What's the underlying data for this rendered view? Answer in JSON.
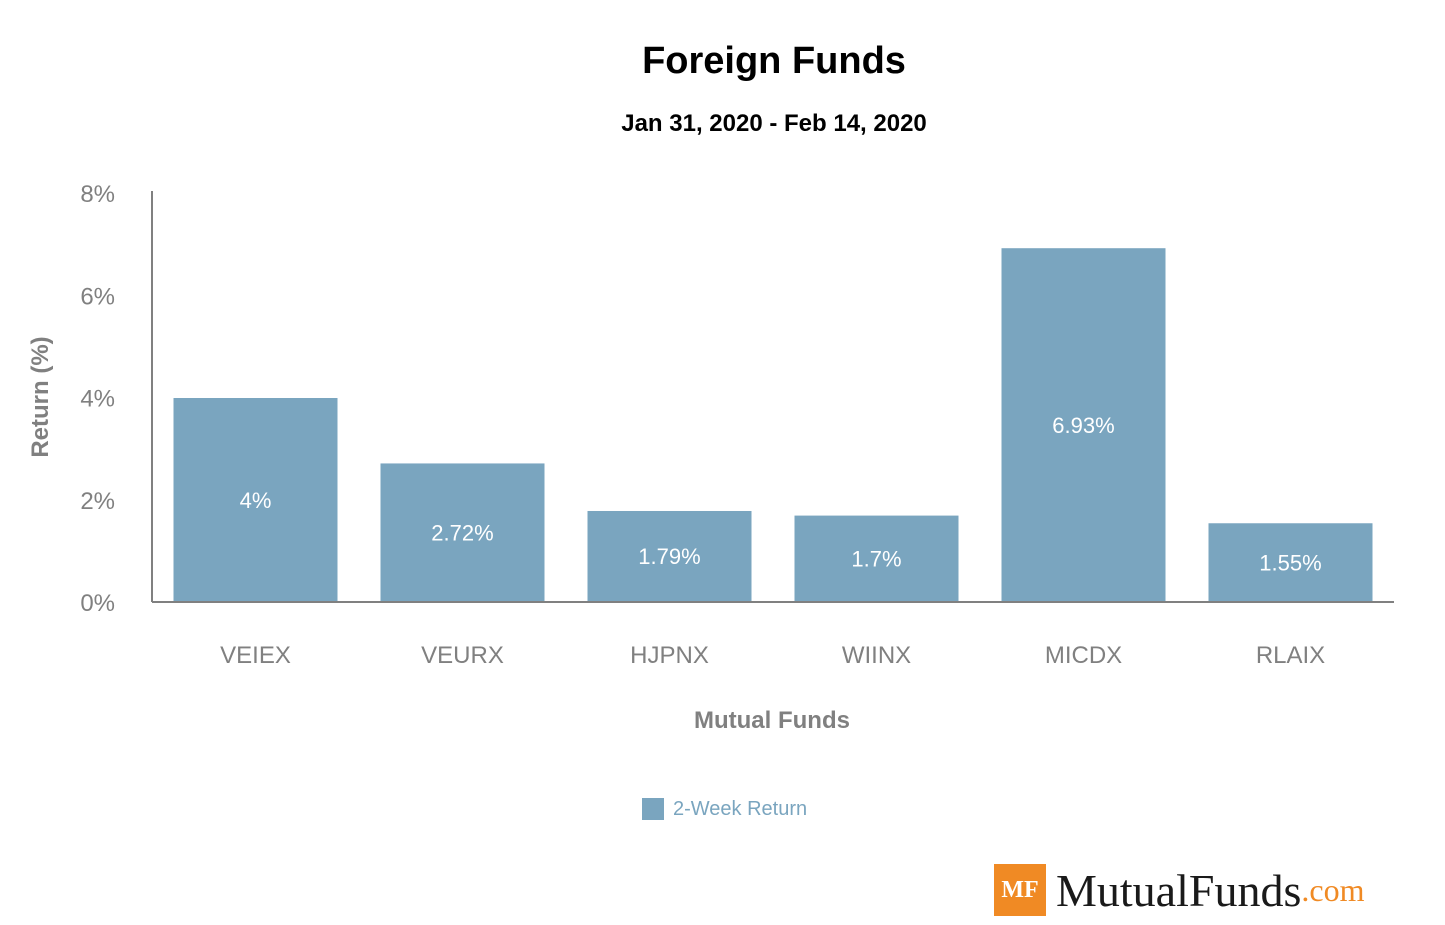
{
  "header": {
    "title": "Foreign Funds",
    "subtitle": "Jan 31, 2020 - Feb 14, 2020"
  },
  "brand": {
    "mark": "MF",
    "name": "MutualFunds",
    "tld": ".com"
  },
  "chart_data": {
    "type": "bar",
    "title": "Foreign Funds",
    "subtitle": "Jan 31, 2020 - Feb 14, 2020",
    "xlabel": "Mutual Funds",
    "ylabel": "Return (%)",
    "categories": [
      "VEIEX",
      "VEURX",
      "HJPNX",
      "WIINX",
      "MICDX",
      "RLAIX"
    ],
    "series": [
      {
        "name": "2-Week Return",
        "color": "#7aa5bf",
        "values": [
          4,
          2.72,
          1.79,
          1.7,
          6.93,
          1.55
        ],
        "labels": [
          "4%",
          "2.72%",
          "1.79%",
          "1.7%",
          "6.93%",
          "1.55%"
        ]
      }
    ],
    "ylim": [
      0,
      8
    ],
    "yticks": [
      0,
      2,
      4,
      6,
      8
    ],
    "ytick_labels": [
      "0%",
      "2%",
      "4%",
      "6%",
      "8%"
    ],
    "grid": false,
    "legend_position": "bottom-center",
    "colors": {
      "bar": "#7aa5bf",
      "axis": "#808080",
      "text": "#808080"
    }
  }
}
